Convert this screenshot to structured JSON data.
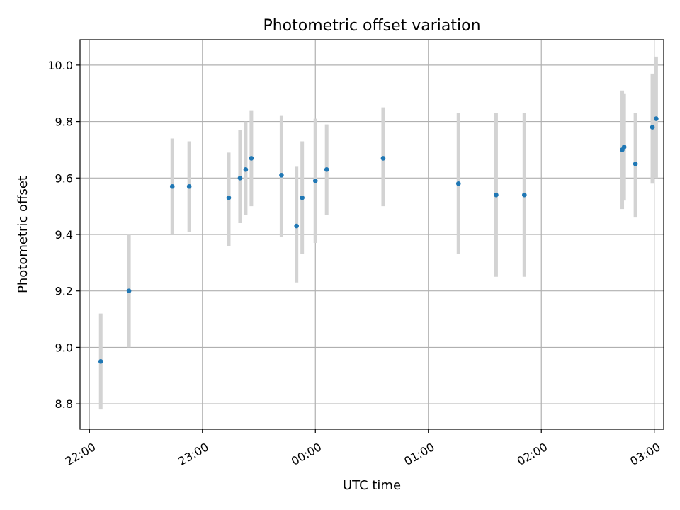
{
  "chart_data": {
    "type": "scatter",
    "title": "Photometric offset variation",
    "xlabel": "UTC time",
    "ylabel": "Photometric offset",
    "x_axis": {
      "scale": "time",
      "ticks": [
        "22:00",
        "23:00",
        "00:00",
        "01:00",
        "02:00",
        "03:00"
      ],
      "tick_dates": [
        "2000-01-01T22:00",
        "2000-01-01T23:00",
        "2000-01-02T00:00",
        "2000-01-02T01:00",
        "2000-01-02T02:00",
        "2000-01-02T03:00"
      ],
      "range": [
        "2000-01-01T21:55",
        "2000-01-02T03:05"
      ]
    },
    "y_axis": {
      "ticks": [
        8.8,
        9.0,
        9.2,
        9.4,
        9.6,
        9.8,
        10.0
      ],
      "range": [
        8.71,
        10.09
      ]
    },
    "grid": true,
    "colors": {
      "point": "#1f77b4",
      "errorbar": "#d3d3d3"
    },
    "series": [
      {
        "points": [
          {
            "t": "2000-01-01T22:06",
            "y": 8.95,
            "ylo": 8.78,
            "yhi": 9.12
          },
          {
            "t": "2000-01-01T22:21",
            "y": 9.2,
            "ylo": 9.0,
            "yhi": 9.4
          },
          {
            "t": "2000-01-01T22:44",
            "y": 9.57,
            "ylo": 9.4,
            "yhi": 9.74
          },
          {
            "t": "2000-01-01T22:53",
            "y": 9.57,
            "ylo": 9.41,
            "yhi": 9.73
          },
          {
            "t": "2000-01-01T23:14",
            "y": 9.53,
            "ylo": 9.36,
            "yhi": 9.69
          },
          {
            "t": "2000-01-01T23:20",
            "y": 9.6,
            "ylo": 9.44,
            "yhi": 9.77
          },
          {
            "t": "2000-01-01T23:23",
            "y": 9.63,
            "ylo": 9.47,
            "yhi": 9.8
          },
          {
            "t": "2000-01-01T23:26",
            "y": 9.67,
            "ylo": 9.5,
            "yhi": 9.84
          },
          {
            "t": "2000-01-01T23:42",
            "y": 9.61,
            "ylo": 9.39,
            "yhi": 9.82
          },
          {
            "t": "2000-01-01T23:50",
            "y": 9.43,
            "ylo": 9.23,
            "yhi": 9.64
          },
          {
            "t": "2000-01-01T23:53",
            "y": 9.53,
            "ylo": 9.33,
            "yhi": 9.73
          },
          {
            "t": "2000-01-02T00:00",
            "y": 9.59,
            "ylo": 9.37,
            "yhi": 9.81
          },
          {
            "t": "2000-01-02T00:06",
            "y": 9.63,
            "ylo": 9.47,
            "yhi": 9.79
          },
          {
            "t": "2000-01-02T00:36",
            "y": 9.67,
            "ylo": 9.5,
            "yhi": 9.85
          },
          {
            "t": "2000-01-02T01:16",
            "y": 9.58,
            "ylo": 9.33,
            "yhi": 9.83
          },
          {
            "t": "2000-01-02T01:36",
            "y": 9.54,
            "ylo": 9.25,
            "yhi": 9.83
          },
          {
            "t": "2000-01-02T01:51",
            "y": 9.54,
            "ylo": 9.25,
            "yhi": 9.83
          },
          {
            "t": "2000-01-02T02:43",
            "y": 9.7,
            "ylo": 9.49,
            "yhi": 9.91
          },
          {
            "t": "2000-01-02T02:44",
            "y": 9.71,
            "ylo": 9.52,
            "yhi": 9.9
          },
          {
            "t": "2000-01-02T02:50",
            "y": 9.65,
            "ylo": 9.46,
            "yhi": 9.83
          },
          {
            "t": "2000-01-02T02:59",
            "y": 9.78,
            "ylo": 9.58,
            "yhi": 9.97
          },
          {
            "t": "2000-01-02T03:01",
            "y": 9.81,
            "ylo": 9.6,
            "yhi": 10.03
          }
        ]
      }
    ]
  }
}
